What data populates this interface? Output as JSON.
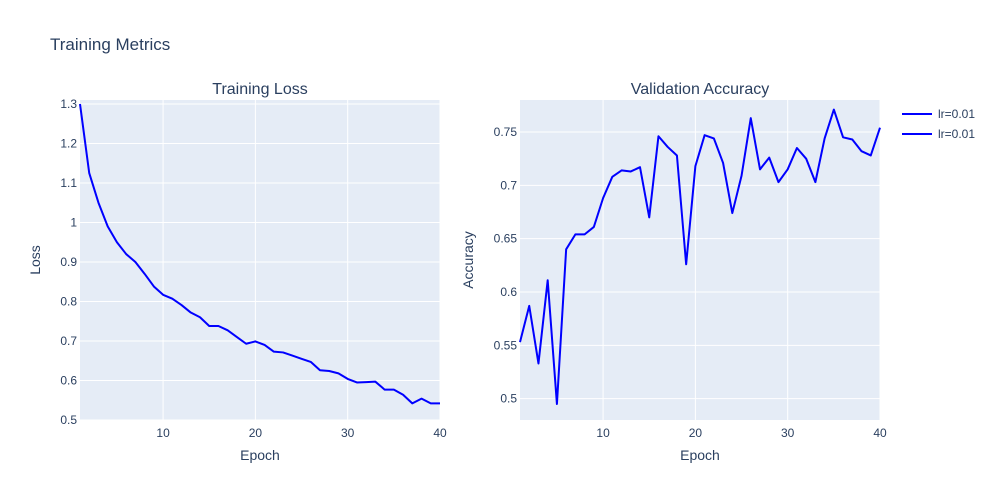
{
  "chart_data": {
    "type": "line",
    "title": "Training Metrics",
    "subplots": [
      {
        "title": "Training Loss",
        "xlabel": "Epoch",
        "ylabel": "Loss",
        "xlim": [
          1,
          40
        ],
        "ylim": [
          0.5,
          1.31
        ],
        "xticks": [
          10,
          20,
          30,
          40
        ],
        "yticks": [
          0.5,
          0.6,
          0.7,
          0.8,
          0.9,
          1,
          1.1,
          1.2,
          1.3
        ],
        "series": [
          {
            "name": "lr=0.01",
            "color": "#0000ff",
            "x": [
              1,
              2,
              3,
              4,
              5,
              6,
              7,
              8,
              9,
              10,
              11,
              12,
              13,
              14,
              15,
              16,
              17,
              18,
              19,
              20,
              21,
              22,
              23,
              24,
              25,
              26,
              27,
              28,
              29,
              30,
              31,
              32,
              33,
              34,
              35,
              36,
              37,
              38,
              39,
              40
            ],
            "y": [
              1.3,
              1.125,
              1.05,
              0.99,
              0.95,
              0.92,
              0.9,
              0.87,
              0.838,
              0.817,
              0.807,
              0.791,
              0.772,
              0.76,
              0.738,
              0.738,
              0.727,
              0.71,
              0.693,
              0.699,
              0.69,
              0.673,
              0.671,
              0.663,
              0.655,
              0.647,
              0.626,
              0.624,
              0.618,
              0.604,
              0.595,
              0.596,
              0.597,
              0.577,
              0.577,
              0.564,
              0.542,
              0.554,
              0.542,
              0.542
            ]
          }
        ]
      },
      {
        "title": "Validation Accuracy",
        "xlabel": "Epoch",
        "ylabel": "Accuracy",
        "xlim": [
          1,
          40
        ],
        "ylim": [
          0.48,
          0.78
        ],
        "xticks": [
          10,
          20,
          30,
          40
        ],
        "yticks": [
          0.5,
          0.55,
          0.6,
          0.65,
          0.7,
          0.75
        ],
        "series": [
          {
            "name": "lr=0.01",
            "color": "#0000ff",
            "x": [
              1,
              2,
              3,
              4,
              5,
              6,
              7,
              8,
              9,
              10,
              11,
              12,
              13,
              14,
              15,
              16,
              17,
              18,
              19,
              20,
              21,
              22,
              23,
              24,
              25,
              26,
              27,
              28,
              29,
              30,
              31,
              32,
              33,
              34,
              35,
              36,
              37,
              38,
              39,
              40
            ],
            "y": [
              0.553,
              0.587,
              0.533,
              0.611,
              0.495,
              0.64,
              0.654,
              0.654,
              0.661,
              0.688,
              0.708,
              0.714,
              0.713,
              0.717,
              0.67,
              0.746,
              0.736,
              0.728,
              0.626,
              0.718,
              0.747,
              0.744,
              0.721,
              0.674,
              0.709,
              0.763,
              0.715,
              0.726,
              0.703,
              0.715,
              0.735,
              0.725,
              0.703,
              0.744,
              0.771,
              0.745,
              0.743,
              0.732,
              0.728,
              0.754
            ]
          }
        ]
      }
    ],
    "legend": {
      "placement": "top-right",
      "entries": [
        {
          "label": "lr=0.01",
          "color": "#0000ff"
        },
        {
          "label": "lr=0.01",
          "color": "#0000ff"
        }
      ]
    },
    "grid": true,
    "plot_bgcolor": "#e5ecf6",
    "grid_color": "#ffffff"
  }
}
